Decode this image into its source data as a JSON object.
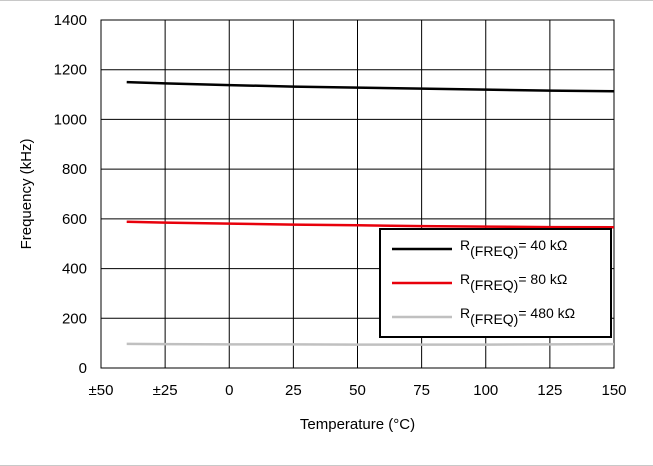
{
  "chart_data": {
    "type": "line",
    "xlabel": "Temperature (°C)",
    "ylabel": "Frequency (kHz)",
    "xlim": [
      -50,
      150
    ],
    "ylim": [
      0,
      1400
    ],
    "x_ticks": [
      -50,
      -25,
      0,
      25,
      50,
      75,
      100,
      125,
      150
    ],
    "x_tick_labels": [
      "±50",
      "±25",
      "0",
      "25",
      "50",
      "75",
      "100",
      "125",
      "150"
    ],
    "y_ticks": [
      0,
      200,
      400,
      600,
      800,
      1000,
      1200,
      1400
    ],
    "y_tick_labels": [
      "0",
      "200",
      "400",
      "600",
      "800",
      "1000",
      "1200",
      "1400"
    ],
    "grid": true,
    "legend_position": "lower-right",
    "series": [
      {
        "legend_prefix": "R",
        "legend_sub": "(FREQ)",
        "legend_suffix": "= 40 kΩ",
        "color": "#000000",
        "x": [
          -40,
          -25,
          0,
          25,
          50,
          75,
          100,
          125,
          150
        ],
        "y": [
          1150,
          1145,
          1138,
          1132,
          1128,
          1124,
          1120,
          1116,
          1113
        ]
      },
      {
        "legend_prefix": "R",
        "legend_sub": "(FREQ)",
        "legend_suffix": "= 80 kΩ",
        "color": "#e8000b",
        "x": [
          -40,
          -25,
          0,
          25,
          50,
          75,
          100,
          125,
          150
        ],
        "y": [
          588,
          585,
          581,
          577,
          574,
          571,
          569,
          567,
          566
        ]
      },
      {
        "legend_prefix": "R",
        "legend_sub": "(FREQ)",
        "legend_suffix": "= 480 kΩ",
        "color": "#c0c0c0",
        "x": [
          -40,
          -25,
          0,
          25,
          50,
          75,
          100,
          125,
          150
        ],
        "y": [
          97,
          96,
          95,
          95,
          94,
          94,
          94,
          95,
          96
        ]
      }
    ]
  }
}
